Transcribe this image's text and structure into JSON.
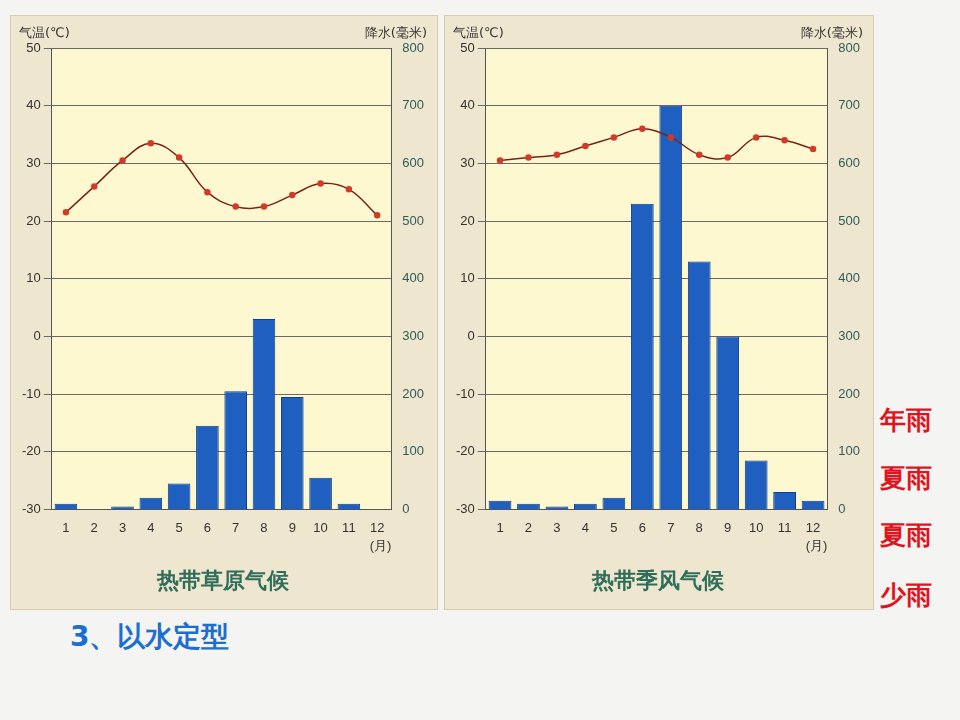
{
  "chart_data": [
    {
      "type": "bar",
      "title": "热带草原气候",
      "y_label": "气温(℃)",
      "y2_label": "降水(毫米)",
      "x_label": "(月)",
      "categories": [
        "1",
        "2",
        "3",
        "4",
        "5",
        "6",
        "7",
        "8",
        "9",
        "10",
        "11",
        "12"
      ],
      "series": [
        {
          "type": "line",
          "axis": "y",
          "color": "#7a2418",
          "marker": "circle",
          "values": [
            21.5,
            26,
            30.5,
            33.5,
            31,
            25,
            22.5,
            22.5,
            24.5,
            26.5,
            25.5,
            21
          ]
        },
        {
          "type": "bar",
          "axis": "y2",
          "color": "#1f5fbf",
          "values": [
            10,
            0,
            5,
            20,
            45,
            145,
            205,
            330,
            195,
            55,
            10,
            0
          ]
        }
      ],
      "ylim": [
        -30,
        50
      ],
      "yticks": [
        -30,
        -20,
        -10,
        0,
        10,
        20,
        30,
        40,
        50
      ],
      "y2lim": [
        0,
        800
      ],
      "y2ticks": [
        0,
        100,
        200,
        300,
        400,
        500,
        600,
        700,
        800
      ],
      "grid": true
    },
    {
      "type": "bar",
      "title": "热带季风气候",
      "y_label": "气温(℃)",
      "y2_label": "降水(毫米)",
      "x_label": "(月)",
      "categories": [
        "1",
        "2",
        "3",
        "4",
        "5",
        "6",
        "7",
        "8",
        "9",
        "10",
        "11",
        "12"
      ],
      "series": [
        {
          "type": "line",
          "axis": "y",
          "color": "#7a2418",
          "marker": "circle",
          "values": [
            30.5,
            31,
            31.5,
            33,
            34.5,
            36,
            34.5,
            31.5,
            31,
            34.5,
            34,
            32.5
          ]
        },
        {
          "type": "bar",
          "axis": "y2",
          "color": "#1f5fbf",
          "values": [
            15,
            10,
            5,
            10,
            20,
            530,
            700,
            430,
            300,
            85,
            30,
            15
          ]
        }
      ],
      "ylim": [
        -30,
        50
      ],
      "yticks": [
        -30,
        -20,
        -10,
        0,
        10,
        20,
        30,
        40,
        50
      ],
      "y2lim": [
        0,
        800
      ],
      "y2ticks": [
        0,
        100,
        200,
        300,
        400,
        500,
        600,
        700,
        800
      ],
      "grid": true
    }
  ],
  "slide": {
    "heading": "3、以水定型",
    "side_notes": [
      "年雨",
      "夏雨",
      "夏雨",
      "少雨"
    ]
  }
}
